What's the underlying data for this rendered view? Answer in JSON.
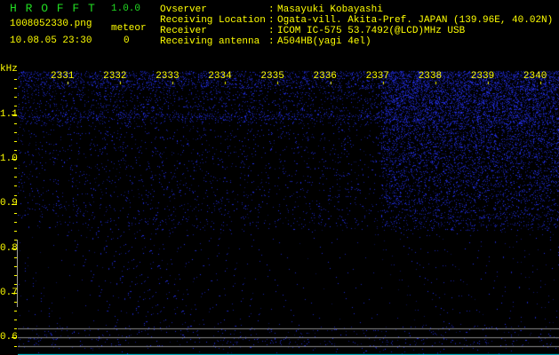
{
  "app": {
    "name": "H R O F F T",
    "version": "1.0.0"
  },
  "file": {
    "filename": "1008052330.png",
    "datetime": "10.08.05 23:30"
  },
  "meteor": {
    "label": "meteor",
    "count": "0"
  },
  "info": [
    {
      "label": "Ovserver",
      "sep": ":",
      "value": "Masayuki Kobayashi"
    },
    {
      "label": "Receiving Location",
      "sep": ":",
      "value": "Ogata-vill. Akita-Pref. JAPAN (139.96E, 40.02N)"
    },
    {
      "label": "Receiver",
      "sep": ":",
      "value": "ICOM IC-575 53.7492(@LCD)MHz USB"
    },
    {
      "label": "Receiving antenna",
      "sep": ":",
      "value": "A504HB(yagi 4el)"
    }
  ],
  "colors": {
    "text": "#ffff00",
    "title": "#22dd22",
    "signal": "#1a2cff"
  },
  "chart_data": {
    "type": "heatmap",
    "ylabel": "kHz",
    "y_ticks": [
      "1.1",
      "1.0",
      "0.9",
      "0.8",
      "0.7",
      "0.6"
    ],
    "x_ticks": [
      "2331",
      "2332",
      "2333",
      "2334",
      "2335",
      "2336",
      "2337",
      "2338",
      "2339",
      "2340"
    ],
    "ylim": [
      0.56,
      1.2
    ]
  }
}
